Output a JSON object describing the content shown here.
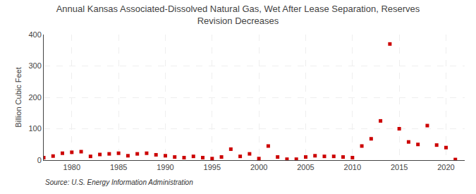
{
  "chart_data": {
    "type": "scatter",
    "title": "Annual Kansas Associated-Dissolved Natural Gas, Wet After Lease Separation, Reserves\nRevision Decreases",
    "ylabel": "Billion Cubic Feet",
    "annotations": [
      "Source: U.S. Energy Information Administration"
    ],
    "x": [
      1977,
      1978,
      1979,
      1980,
      1981,
      1982,
      1983,
      1984,
      1985,
      1986,
      1987,
      1988,
      1989,
      1990,
      1991,
      1992,
      1993,
      1994,
      1995,
      1996,
      1997,
      1998,
      1999,
      2000,
      2001,
      2002,
      2003,
      2004,
      2005,
      2006,
      2007,
      2008,
      2009,
      2010,
      2011,
      2012,
      2013,
      2014,
      2015,
      2016,
      2017,
      2018,
      2019,
      2020,
      2021
    ],
    "values": [
      8,
      13,
      22,
      25,
      27,
      12,
      18,
      20,
      22,
      14,
      20,
      22,
      17,
      14,
      10,
      8,
      12,
      8,
      5,
      10,
      35,
      12,
      20,
      5,
      45,
      10,
      3,
      3,
      10,
      14,
      12,
      12,
      10,
      8,
      45,
      68,
      125,
      370,
      100,
      58,
      50,
      110,
      48,
      40,
      2
    ],
    "color": "#cc0000",
    "marker": "square",
    "xlim": [
      1977,
      2022
    ],
    "xticks": [
      1980,
      1985,
      1990,
      1995,
      2000,
      2005,
      2010,
      2015,
      2020
    ],
    "ylim": [
      0,
      400
    ],
    "yticks": [
      0,
      100,
      200,
      300,
      400
    ],
    "grid": true
  }
}
